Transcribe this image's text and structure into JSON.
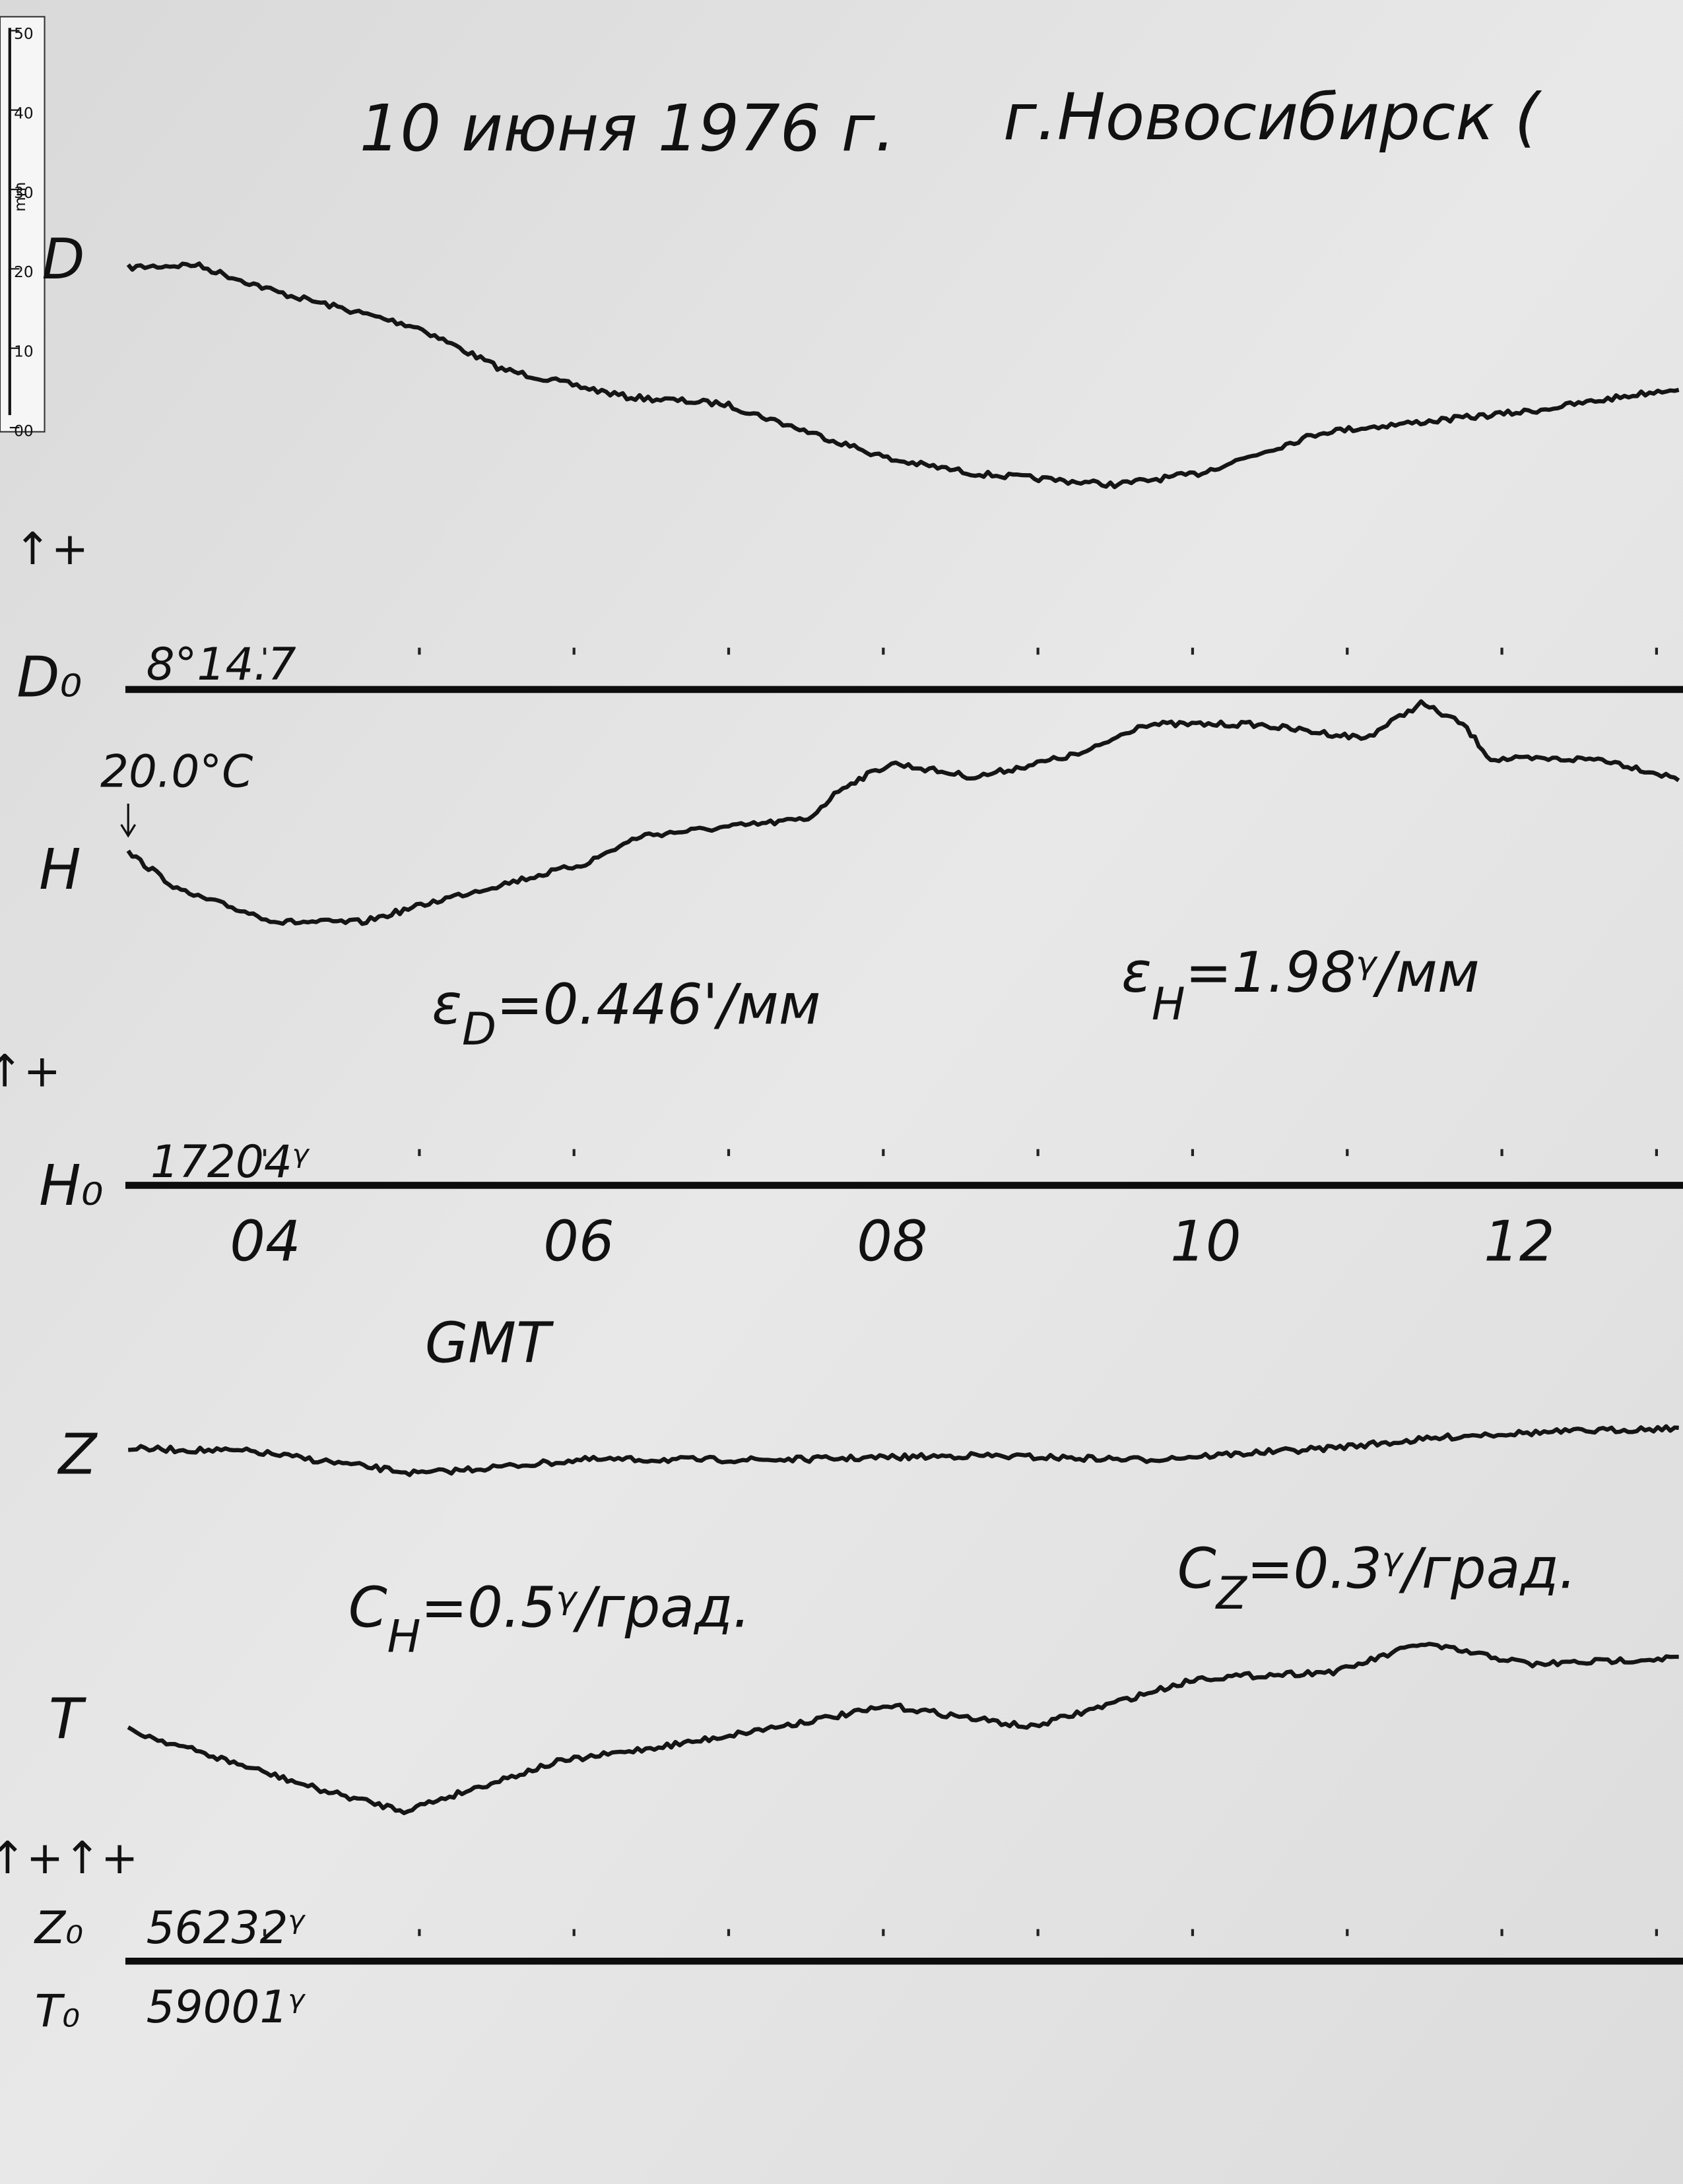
{
  "header": {
    "date": "10 июня 1976 г.",
    "station": "г.Новосибирск ("
  },
  "ruler": {
    "unit": "mm",
    "labels": [
      "50",
      "40",
      "30",
      "20",
      "10",
      "00"
    ]
  },
  "traces": {
    "D": {
      "label": "D",
      "baseline_label": "D₀",
      "baseline_value": "8°14.7"
    },
    "H": {
      "label": "H",
      "baseline_label": "H₀",
      "baseline_value": "17204ᵞ",
      "temperature": "20.0°C"
    },
    "Z": {
      "label": "Z",
      "baseline_label": "Z₀",
      "baseline_value": "56232ᵞ"
    },
    "T": {
      "label": "T",
      "baseline_label": "T₀",
      "baseline_value": "59001ᵞ"
    }
  },
  "polarity": {
    "first": "↑+",
    "second": "↑+",
    "third": "↑+↑+"
  },
  "scale_values": {
    "eps_D": {
      "symbol": "ε",
      "subscript": "D",
      "value": "=0.446'/мм"
    },
    "eps_H": {
      "symbol": "ε",
      "subscript": "H",
      "value": "=1.98ᵞ/мм"
    },
    "c_H": {
      "symbol": "C",
      "subscript": "H",
      "value": "=0.5ᵞ/град."
    },
    "c_Z": {
      "symbol": "C",
      "subscript": "Z",
      "value": "=0.3ᵞ/град."
    }
  },
  "time_axis": {
    "labels": [
      "04",
      "06",
      "08",
      "10",
      "12"
    ],
    "title": "GMT"
  }
}
